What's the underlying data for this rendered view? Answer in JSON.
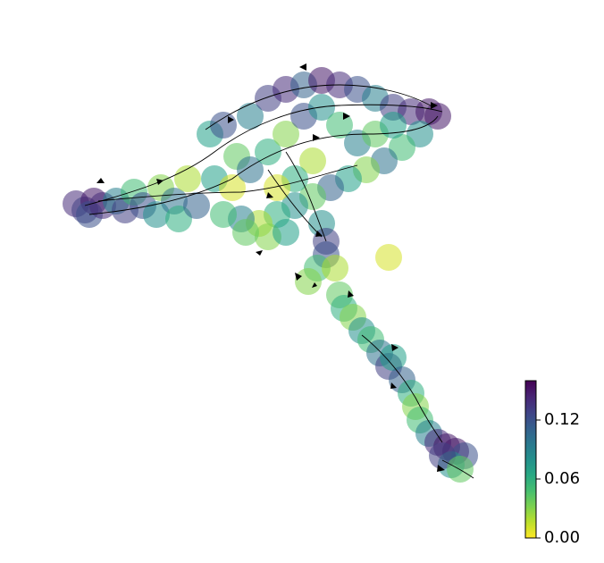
{
  "chart_data": {
    "type": "scatter",
    "x": [
      5,
      7,
      9,
      8,
      11,
      14,
      16,
      18,
      20,
      23,
      24,
      27,
      28,
      30,
      32,
      35,
      38,
      41,
      44,
      48,
      52,
      56,
      60,
      64,
      68,
      72,
      76,
      80,
      84,
      86,
      82,
      78,
      74,
      70,
      66,
      62,
      58,
      54,
      50,
      46,
      42,
      38,
      36,
      40,
      44,
      48,
      52,
      56,
      60,
      64,
      68,
      72,
      76,
      58,
      54,
      50,
      60,
      61,
      48,
      52,
      43,
      61,
      59,
      57,
      63,
      64,
      65,
      67,
      69,
      71,
      73,
      75,
      76,
      78,
      80,
      81,
      82,
      84,
      86,
      88,
      90,
      92,
      89,
      87,
      91,
      75
    ],
    "y": [
      68.4,
      67,
      69,
      66,
      68,
      69,
      67,
      71,
      68,
      66,
      72,
      69,
      65,
      74,
      68,
      84,
      86,
      79,
      88,
      92,
      94,
      95,
      96,
      95,
      94,
      92,
      90,
      89,
      89,
      88,
      84,
      81,
      78,
      76,
      74,
      72,
      70,
      68,
      66,
      64,
      65,
      66,
      74,
      72,
      76,
      80,
      84,
      88,
      90,
      86,
      82,
      84,
      86,
      78,
      74,
      72,
      64,
      60,
      61,
      62,
      62,
      57,
      54,
      51,
      54,
      48,
      45,
      43,
      40,
      38,
      35,
      32,
      34,
      29,
      26,
      23,
      20,
      17,
      15,
      14,
      13,
      12,
      10,
      12,
      9,
      56.4
    ],
    "values": [
      0.14,
      0.13,
      0.15,
      0.12,
      0.14,
      0.09,
      0.13,
      0.05,
      0.12,
      0.08,
      0.03,
      0.1,
      0.06,
      0.02,
      0.11,
      0.07,
      0.12,
      0.04,
      0.09,
      0.13,
      0.14,
      0.11,
      0.15,
      0.14,
      0.12,
      0.09,
      0.13,
      0.14,
      0.15,
      0.15,
      0.08,
      0.05,
      0.1,
      0.03,
      0.07,
      0.11,
      0.04,
      0.08,
      0.06,
      0.02,
      0.09,
      0.05,
      0.07,
      0.01,
      0.1,
      0.06,
      0.03,
      0.12,
      0.08,
      0.05,
      0.09,
      0.04,
      0.07,
      0.02,
      0.06,
      0.01,
      0.08,
      0.13,
      0.03,
      0.07,
      0.04,
      0.12,
      0.05,
      0.03,
      0.02,
      0.04,
      0.06,
      0.03,
      0.08,
      0.05,
      0.1,
      0.13,
      0.07,
      0.11,
      0.06,
      0.03,
      0.05,
      0.09,
      0.14,
      0.15,
      0.15,
      0.12,
      0.08,
      0.13,
      0.04,
      0.01
    ],
    "xlim": [
      0,
      100
    ],
    "ylim": [
      0,
      100
    ],
    "colormap": "viridis_r",
    "colorbar": {
      "lim": [
        0,
        0.16
      ],
      "ticks": [
        {
          "value": 0,
          "label": "0.00"
        },
        0.06,
        0.12
      ]
    }
  }
}
